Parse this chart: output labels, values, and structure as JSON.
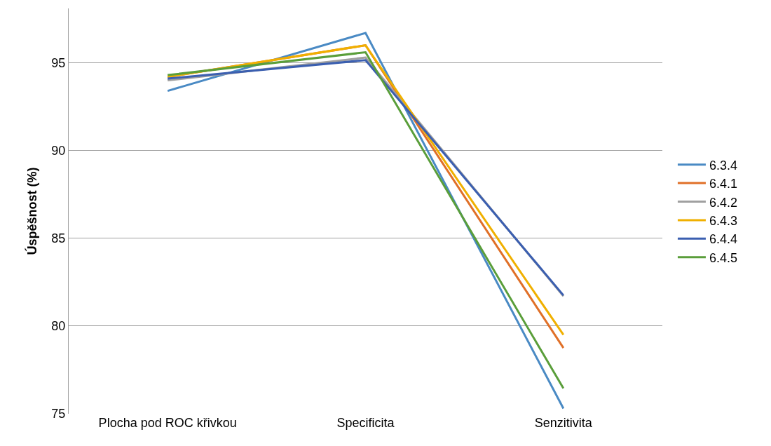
{
  "chart_data": {
    "type": "line",
    "ylabel": "Úspěšnost (%)",
    "categories": [
      "Plocha pod ROC křivkou",
      "Specificita",
      "Senzitivita"
    ],
    "series": [
      {
        "name": "6.3.4",
        "color": "#4a8ac4",
        "values": [
          93.4,
          96.7,
          75.3
        ]
      },
      {
        "name": "6.4.1",
        "color": "#e07028",
        "values": [
          94.2,
          96.0,
          78.75
        ]
      },
      {
        "name": "6.4.2",
        "color": "#a0a0a0",
        "values": [
          94.0,
          95.3,
          81.7
        ]
      },
      {
        "name": "6.4.3",
        "color": "#f0b000",
        "values": [
          94.2,
          96.0,
          79.5
        ]
      },
      {
        "name": "6.4.4",
        "color": "#3b5fb0",
        "values": [
          94.1,
          95.15,
          81.75
        ]
      },
      {
        "name": "6.4.5",
        "color": "#5a9e3a",
        "values": [
          94.3,
          95.6,
          76.45
        ]
      }
    ],
    "ylim": [
      75,
      98.1
    ],
    "yticks": [
      75,
      80,
      85,
      90,
      95
    ],
    "grid": "y",
    "legend": "right",
    "marker": "none",
    "line_style": "solid"
  }
}
